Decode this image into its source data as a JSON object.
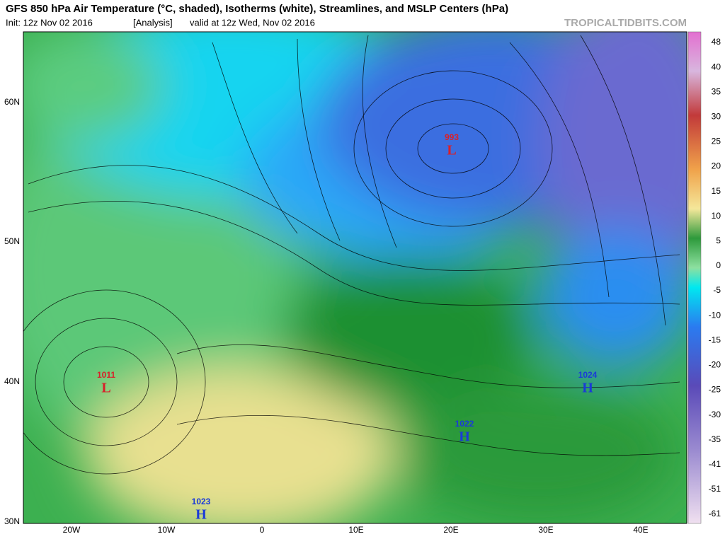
{
  "header": {
    "title": "GFS 850 hPa Air Temperature (°C, shaded), Isotherms (white), Streamlines, and MSLP Centers (hPa)",
    "init": "Init: 12z Nov 02 2016",
    "tag": "[Analysis]",
    "valid": "valid at 12z Wed, Nov 02 2016",
    "credit": "TROPICALTIDBITS.COM"
  },
  "map": {
    "lat_labels": [
      "60N",
      "50N",
      "40N",
      "30N"
    ],
    "lon_labels": [
      "20W",
      "10W",
      "0",
      "10E",
      "20E",
      "30E",
      "40E"
    ],
    "centers": [
      {
        "pressure": 993,
        "type": "L"
      },
      {
        "pressure": 1011,
        "type": "L"
      },
      {
        "pressure": 1024,
        "type": "H"
      },
      {
        "pressure": 1022,
        "type": "H"
      },
      {
        "pressure": 1023,
        "type": "H"
      }
    ]
  },
  "colorbar": {
    "labels": [
      48,
      40,
      35,
      30,
      25,
      20,
      15,
      10,
      5,
      0,
      -5,
      -10,
      -15,
      -20,
      -25,
      -30,
      -35,
      -41,
      -51,
      -61
    ]
  }
}
